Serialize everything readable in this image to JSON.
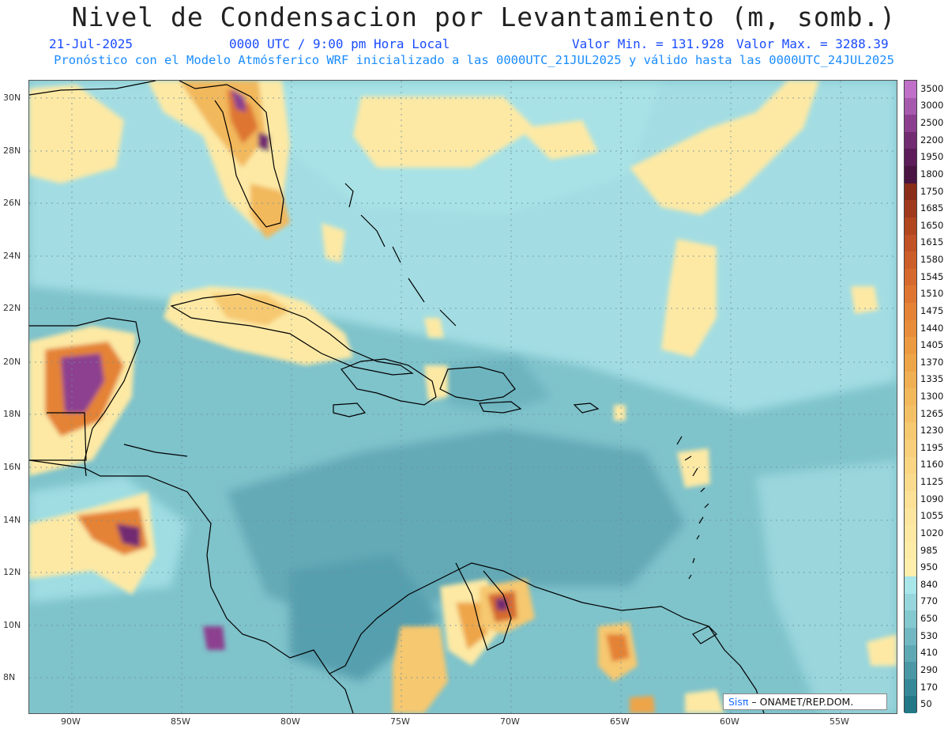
{
  "header": {
    "title": "Nivel de Condensacion por Levantamiento (m, somb.)",
    "date": "21-Jul-2025",
    "time": "0000 UTC / 9:00 pm Hora Local",
    "min_label": "Valor Min. = 131.928",
    "max_label": "Valor Max. = 3288.39",
    "description": "Pronóstico con el Modelo Atmósferico WRF inicializado a las 0000UTC_21JUL2025 y válido hasta las  0000UTC_24JUL2025"
  },
  "axes": {
    "lon_labels": [
      "90W",
      "85W",
      "80W",
      "75W",
      "70W",
      "65W",
      "60W",
      "55W"
    ],
    "lat_labels": [
      "30N",
      "28N",
      "26N",
      "24N",
      "22N",
      "20N",
      "18N",
      "16N",
      "14N",
      "12N",
      "10N",
      "8N"
    ]
  },
  "colorbar": {
    "labels": [
      "3500",
      "3000",
      "2500",
      "2200",
      "1950",
      "1800",
      "1750",
      "1685",
      "1650",
      "1615",
      "1580",
      "1545",
      "1510",
      "1475",
      "1440",
      "1405",
      "1370",
      "1335",
      "1300",
      "1265",
      "1230",
      "1195",
      "1160",
      "1125",
      "1090",
      "1055",
      "1020",
      "985",
      "950",
      "840",
      "770",
      "650",
      "530",
      "410",
      "290",
      "170",
      "50"
    ],
    "colors": [
      "#c070c8",
      "#a65aae",
      "#8c3f8f",
      "#722c72",
      "#5c1d5a",
      "#4a1542",
      "#8a2e1a",
      "#a03a1c",
      "#b2461f",
      "#c05226",
      "#cc5e2a",
      "#d66a2e",
      "#de7632",
      "#e48236",
      "#e88e3a",
      "#eb9a40",
      "#eea548",
      "#f0af52",
      "#f2b85c",
      "#f4c066",
      "#f6c870",
      "#f8cf7a",
      "#f9d584",
      "#fadb8e",
      "#fbe096",
      "#fce59e",
      "#fde9a4",
      "#fdeca8",
      "#feefac",
      "#a8e6ea",
      "#96d6dc",
      "#84c8d0",
      "#72b8c2",
      "#5ea8b4",
      "#4a98a6",
      "#368898",
      "#237888"
    ]
  },
  "credit": {
    "logo": "Sisπ",
    "text": " – ONAMET/REP.DOM."
  },
  "map": {
    "region": "Caribbean Sea, Gulf of Mexico, Central America, northern South America",
    "field": "lifting condensation level"
  }
}
